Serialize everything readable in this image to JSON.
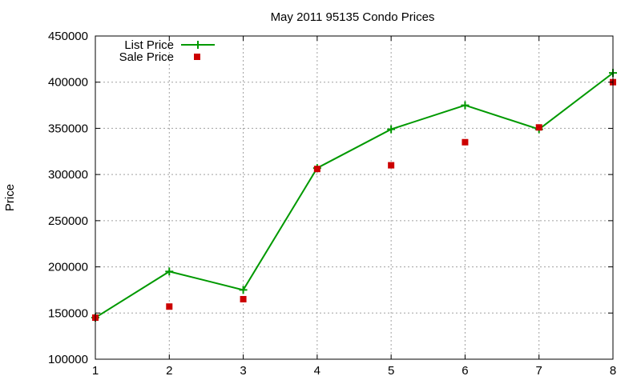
{
  "chart_data": {
    "type": "line",
    "title": "May 2011 95135 Condo Prices",
    "xlabel": "",
    "ylabel": "Price",
    "x": [
      1,
      2,
      3,
      4,
      5,
      6,
      7,
      8
    ],
    "xlim": [
      1,
      8
    ],
    "ylim": [
      100000,
      450000
    ],
    "xticks": [
      "1",
      "2",
      "3",
      "4",
      "5",
      "6",
      "7",
      "8"
    ],
    "yticks": [
      "100000",
      "150000",
      "200000",
      "250000",
      "300000",
      "350000",
      "400000",
      "450000"
    ],
    "grid": true,
    "legend_position": "top-left",
    "series": [
      {
        "name": "List Price",
        "style": "line-with-plus-markers",
        "color": "#009900",
        "values": [
          145000,
          195000,
          175000,
          307000,
          349000,
          375000,
          349000,
          410000
        ]
      },
      {
        "name": "Sale Price",
        "style": "square-markers",
        "color": "#cc0000",
        "values": [
          145000,
          157000,
          165000,
          306000,
          310000,
          335000,
          351000,
          400000
        ]
      }
    ]
  }
}
